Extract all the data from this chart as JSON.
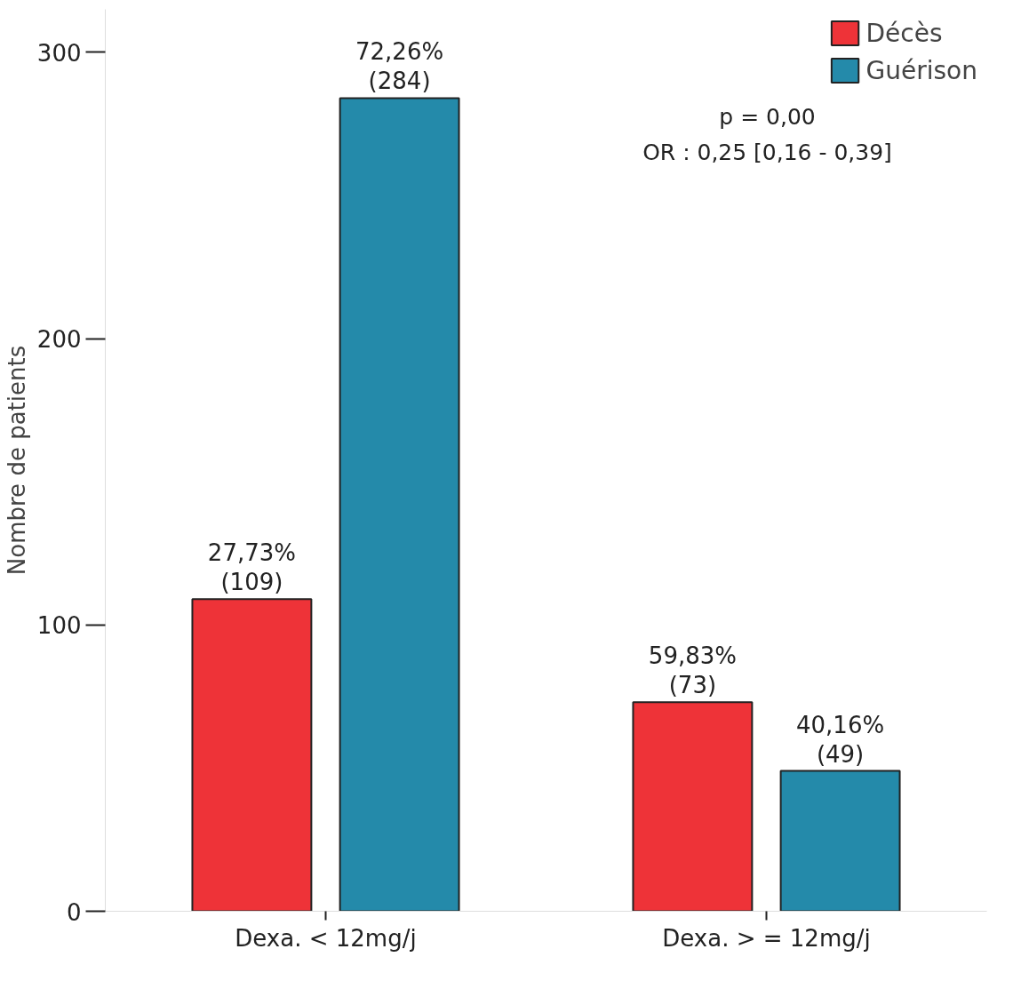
{
  "chart_data": {
    "type": "bar",
    "ylabel": "Nombre de patients",
    "categories": [
      "Dexa. < 12mg/j",
      "Dexa. > = 12mg/j"
    ],
    "series": [
      {
        "name": "Décès",
        "color": "#ee3338",
        "values": [
          109,
          73
        ],
        "value_labels": [
          "27,73%\n(109)",
          "59,83%\n(73)"
        ]
      },
      {
        "name": "Guérison",
        "color": "#248aaa",
        "values": [
          284,
          49
        ],
        "value_labels": [
          "72,26%\n(284)",
          "40,16%\n(49)"
        ]
      }
    ],
    "ylim": [
      0,
      315
    ],
    "yticks": [
      0,
      100,
      200,
      300
    ],
    "legend": "top right",
    "grid": false,
    "annotations": [
      "p = 0,00",
      "OR : 0,25 [0,16 - 0,39]"
    ]
  }
}
